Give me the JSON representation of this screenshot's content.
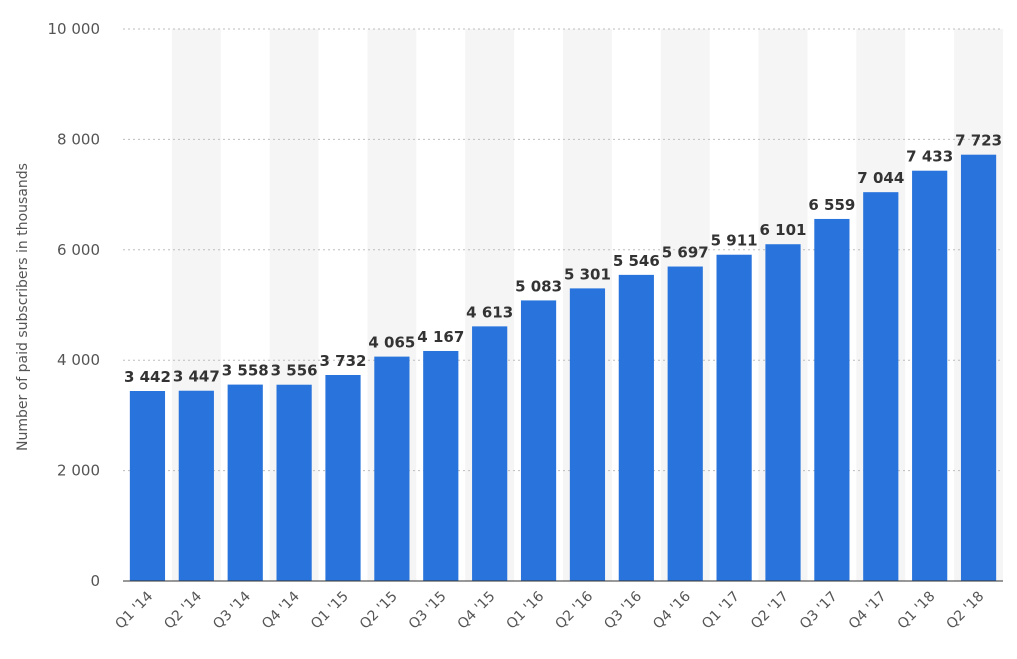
{
  "chart_data": {
    "type": "bar",
    "categories": [
      "Q1 '14",
      "Q2 '14",
      "Q3 '14",
      "Q4 '14",
      "Q1 '15",
      "Q2 '15",
      "Q3 '15",
      "Q4 '15",
      "Q1 '16",
      "Q2 '16",
      "Q3 '16",
      "Q4 '16",
      "Q1 '17",
      "Q2 '17",
      "Q3 '17",
      "Q4 '17",
      "Q1 '18",
      "Q2 '18"
    ],
    "values": [
      3442,
      3447,
      3558,
      3556,
      3732,
      4065,
      4167,
      4613,
      5083,
      5301,
      5546,
      5697,
      5911,
      6101,
      6559,
      7044,
      7433,
      7723
    ],
    "value_labels": [
      "3 442",
      "3 447",
      "3 558",
      "3 556",
      "3 732",
      "4 065",
      "4 167",
      "4 613",
      "5 083",
      "5 301",
      "5 546",
      "5 697",
      "5 911",
      "6 101",
      "6 559",
      "7 044",
      "7 433",
      "7 723"
    ],
    "ylabel": "Number of paid subscribers in thousands",
    "ylim": [
      0,
      10000
    ],
    "yticks": [
      0,
      2000,
      4000,
      6000,
      8000,
      10000
    ],
    "ytick_labels": [
      "0",
      "2 000",
      "4 000",
      "6 000",
      "8 000",
      "10 000"
    ],
    "grid": true,
    "bar_color": "#2874dc",
    "band_color": "#f5f5f5"
  }
}
